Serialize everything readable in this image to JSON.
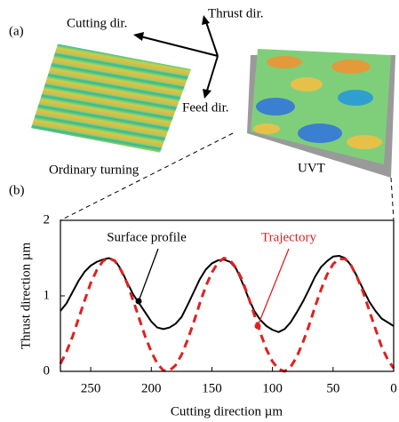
{
  "panel_labels": [
    "(a)",
    "(b)"
  ],
  "panel_a": {
    "directions": [
      "Cutting dir.",
      "Thrust dir.",
      "Feed dir."
    ],
    "captions": [
      "Ordinary turning",
      "UVT"
    ]
  },
  "chart_data": {
    "type": "line",
    "x_label": "Cutting direction µm",
    "y_label": "Thrust direction µm",
    "xlim": [
      275,
      0
    ],
    "ylim": [
      0,
      2
    ],
    "xticks": [
      250,
      200,
      150,
      100,
      50,
      0
    ],
    "yticks": [
      0,
      1,
      2
    ],
    "annotations": [
      "Surface profile",
      "Trajectory"
    ],
    "x": [
      275,
      270,
      265,
      260,
      255,
      250,
      245,
      240,
      235,
      230,
      225,
      220,
      215,
      210,
      205,
      200,
      195,
      190,
      185,
      180,
      175,
      170,
      165,
      160,
      155,
      150,
      145,
      140,
      135,
      130,
      125,
      120,
      115,
      110,
      105,
      100,
      95,
      90,
      85,
      80,
      75,
      70,
      65,
      60,
      55,
      50,
      45,
      40,
      35,
      30,
      25,
      20,
      15,
      10,
      5,
      0
    ],
    "series": [
      {
        "name": "Surface profile",
        "color": "#000000",
        "dashed": false,
        "values": [
          0.8,
          0.9,
          1.05,
          1.2,
          1.32,
          1.4,
          1.45,
          1.48,
          1.5,
          1.47,
          1.35,
          1.18,
          1.02,
          0.9,
          0.78,
          0.66,
          0.58,
          0.56,
          0.58,
          0.63,
          0.72,
          0.88,
          1.05,
          1.22,
          1.35,
          1.43,
          1.47,
          1.48,
          1.45,
          1.36,
          1.18,
          0.98,
          0.8,
          0.68,
          0.6,
          0.55,
          0.52,
          0.56,
          0.65,
          0.78,
          0.92,
          1.08,
          1.25,
          1.38,
          1.46,
          1.52,
          1.53,
          1.5,
          1.4,
          1.25,
          1.08,
          0.92,
          0.8,
          0.7,
          0.65,
          0.6
        ]
      },
      {
        "name": "Trajectory",
        "color": "#e02020",
        "dashed": true,
        "values": [
          0.1,
          0.26,
          0.46,
          0.7,
          0.94,
          1.17,
          1.34,
          1.46,
          1.5,
          1.46,
          1.34,
          1.17,
          0.94,
          0.7,
          0.46,
          0.26,
          0.1,
          0.01,
          0.01,
          0.08,
          0.22,
          0.42,
          0.65,
          0.9,
          1.13,
          1.31,
          1.44,
          1.5,
          1.47,
          1.37,
          1.21,
          0.99,
          0.75,
          0.51,
          0.29,
          0.13,
          0.03,
          0.0,
          0.06,
          0.19,
          0.38,
          0.6,
          0.85,
          1.08,
          1.28,
          1.42,
          1.49,
          1.49,
          1.4,
          1.24,
          1.04,
          0.8,
          0.56,
          0.33,
          0.16,
          0.04
        ]
      }
    ]
  }
}
